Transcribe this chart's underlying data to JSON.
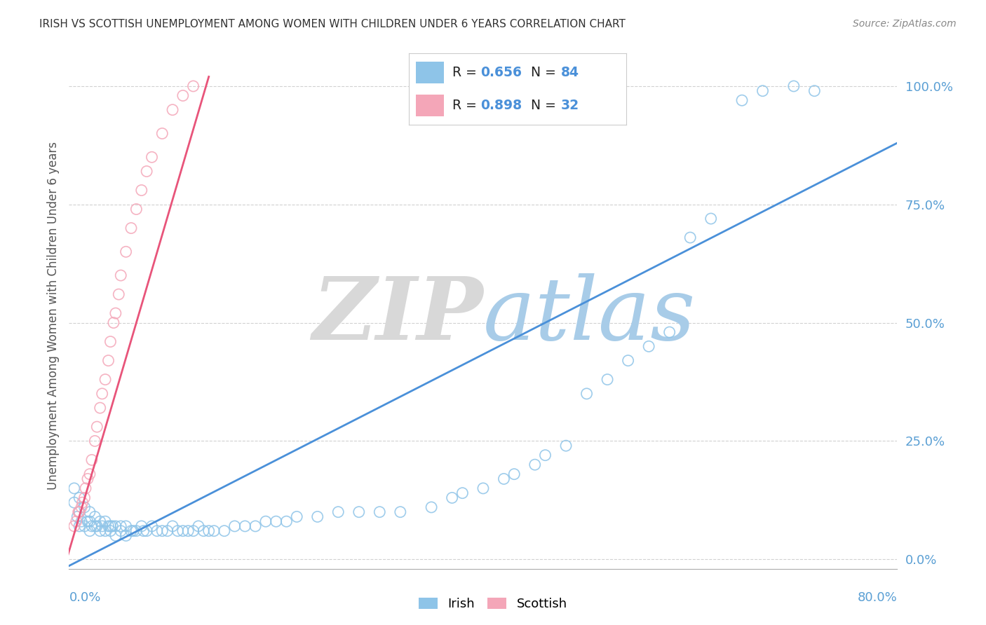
{
  "title": "IRISH VS SCOTTISH UNEMPLOYMENT AMONG WOMEN WITH CHILDREN UNDER 6 YEARS CORRELATION CHART",
  "source": "Source: ZipAtlas.com",
  "xlabel_bottom_left": "0.0%",
  "xlabel_bottom_right": "80.0%",
  "ylabel": "Unemployment Among Women with Children Under 6 years",
  "ytick_labels": [
    "100.0%",
    "75.0%",
    "50.0%",
    "25.0%",
    "0.0%"
  ],
  "ytick_values": [
    1.0,
    0.75,
    0.5,
    0.25,
    0.0
  ],
  "xrange": [
    0.0,
    0.8
  ],
  "yrange": [
    -0.02,
    1.05
  ],
  "irish_R": 0.656,
  "irish_N": 84,
  "scottish_R": 0.898,
  "scottish_N": 32,
  "irish_dot_color": "#8ec4e8",
  "scottish_dot_color": "#f4a6b8",
  "irish_line_color": "#4a90d9",
  "scottish_line_color": "#e8547a",
  "watermark_zip_color": "#d8d8d8",
  "watermark_atlas_color": "#a8cce8",
  "title_color": "#333333",
  "source_color": "#888888",
  "tick_color": "#5a9fd4",
  "ylabel_color": "#555555",
  "legend_text_color": "#222222",
  "legend_value_color": "#4a90d9",
  "grid_color": "#cccccc",
  "irish_scatter_x": [
    0.005,
    0.005,
    0.008,
    0.01,
    0.01,
    0.01,
    0.012,
    0.015,
    0.015,
    0.018,
    0.02,
    0.02,
    0.02,
    0.022,
    0.025,
    0.025,
    0.027,
    0.03,
    0.03,
    0.032,
    0.035,
    0.035,
    0.038,
    0.04,
    0.04,
    0.042,
    0.045,
    0.045,
    0.05,
    0.05,
    0.055,
    0.055,
    0.06,
    0.062,
    0.065,
    0.07,
    0.072,
    0.075,
    0.08,
    0.085,
    0.09,
    0.095,
    0.1,
    0.105,
    0.11,
    0.115,
    0.12,
    0.125,
    0.13,
    0.135,
    0.14,
    0.15,
    0.16,
    0.17,
    0.18,
    0.19,
    0.2,
    0.21,
    0.22,
    0.24,
    0.26,
    0.28,
    0.3,
    0.32,
    0.35,
    0.37,
    0.38,
    0.4,
    0.42,
    0.43,
    0.45,
    0.46,
    0.48,
    0.5,
    0.52,
    0.54,
    0.56,
    0.58,
    0.6,
    0.62,
    0.65,
    0.67,
    0.7,
    0.72
  ],
  "irish_scatter_y": [
    0.15,
    0.12,
    0.09,
    0.13,
    0.1,
    0.07,
    0.08,
    0.11,
    0.07,
    0.08,
    0.1,
    0.08,
    0.06,
    0.07,
    0.09,
    0.07,
    0.07,
    0.08,
    0.06,
    0.07,
    0.08,
    0.06,
    0.07,
    0.07,
    0.06,
    0.07,
    0.07,
    0.05,
    0.07,
    0.06,
    0.07,
    0.05,
    0.06,
    0.06,
    0.06,
    0.07,
    0.06,
    0.06,
    0.07,
    0.06,
    0.06,
    0.06,
    0.07,
    0.06,
    0.06,
    0.06,
    0.06,
    0.07,
    0.06,
    0.06,
    0.06,
    0.06,
    0.07,
    0.07,
    0.07,
    0.08,
    0.08,
    0.08,
    0.09,
    0.09,
    0.1,
    0.1,
    0.1,
    0.1,
    0.11,
    0.13,
    0.14,
    0.15,
    0.17,
    0.18,
    0.2,
    0.22,
    0.24,
    0.35,
    0.38,
    0.42,
    0.45,
    0.48,
    0.68,
    0.72,
    0.97,
    0.99,
    1.0,
    0.99
  ],
  "scottish_scatter_x": [
    0.005,
    0.007,
    0.009,
    0.01,
    0.012,
    0.013,
    0.015,
    0.016,
    0.018,
    0.02,
    0.022,
    0.025,
    0.027,
    0.03,
    0.032,
    0.035,
    0.038,
    0.04,
    0.043,
    0.045,
    0.048,
    0.05,
    0.055,
    0.06,
    0.065,
    0.07,
    0.075,
    0.08,
    0.09,
    0.1,
    0.11,
    0.12
  ],
  "scottish_scatter_y": [
    0.07,
    0.08,
    0.1,
    0.1,
    0.11,
    0.12,
    0.13,
    0.15,
    0.17,
    0.18,
    0.21,
    0.25,
    0.28,
    0.32,
    0.35,
    0.38,
    0.42,
    0.46,
    0.5,
    0.52,
    0.56,
    0.6,
    0.65,
    0.7,
    0.74,
    0.78,
    0.82,
    0.85,
    0.9,
    0.95,
    0.98,
    1.0
  ],
  "irish_line_x": [
    -0.01,
    0.8
  ],
  "irish_line_y": [
    -0.025,
    0.88
  ],
  "scottish_line_x": [
    -0.005,
    0.135
  ],
  "scottish_line_y": [
    -0.02,
    1.02
  ]
}
